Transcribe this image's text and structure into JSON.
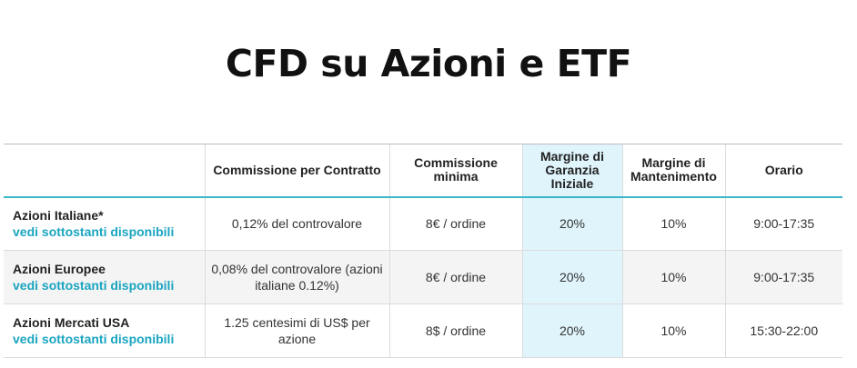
{
  "title": "CFD su Azioni e ETF",
  "columns": [
    "",
    "Commissione per Contratto",
    "Commissione minima",
    "Margine di Garanzia Iniziale",
    "Margine di Mantenimento",
    "Orario"
  ],
  "rows": [
    {
      "name": "Azioni Italiane*",
      "link": "vedi sottostanti disponibili",
      "commissione": "0,12% del controvalore",
      "minima": "8€ / ordine",
      "margine_iniziale": "20%",
      "mantenimento": "10%",
      "orario": "9:00-17:35"
    },
    {
      "name": "Azioni Europee",
      "link": "vedi sottostanti disponibili",
      "commissione": "0,08% del controvalore (azioni italiane 0.12%)",
      "minima": "8€ / ordine",
      "margine_iniziale": "20%",
      "mantenimento": "10%",
      "orario": "9:00-17:35"
    },
    {
      "name": "Azioni Mercati USA",
      "link": "vedi sottostanti disponibili",
      "commissione": "1.25 centesimi di US$ per azione",
      "minima": "8$ / ordine",
      "margine_iniziale": "20%",
      "mantenimento": "10%",
      "orario": "15:30-22:00"
    }
  ]
}
